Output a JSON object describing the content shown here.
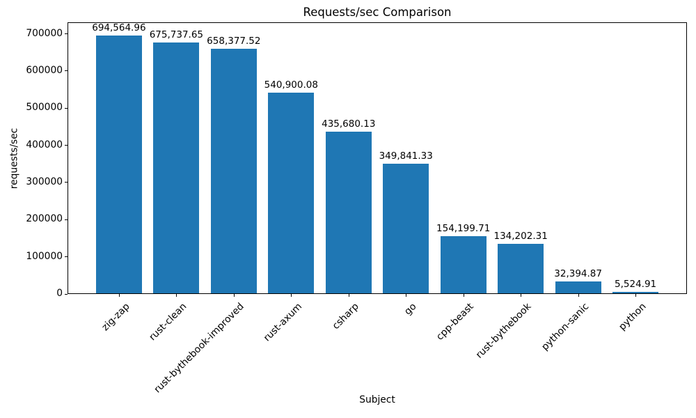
{
  "chart_data": {
    "type": "bar",
    "title": "Requests/sec Comparison",
    "xlabel": "Subject",
    "ylabel": "requests/sec",
    "categories": [
      "zig-zap",
      "rust-clean",
      "rust-bythebook-improved",
      "rust-axum",
      "csharp",
      "go",
      "cpp-beast",
      "rust-bythebook",
      "python-sanic",
      "python"
    ],
    "values": [
      694564.96,
      675737.65,
      658377.52,
      540900.08,
      435680.13,
      349841.33,
      154199.71,
      134202.31,
      32394.87,
      5524.91
    ],
    "value_labels": [
      "694,564.96",
      "675,737.65",
      "658,377.52",
      "540,900.08",
      "435,680.13",
      "349,841.33",
      "154,199.71",
      "134,202.31",
      "32,394.87",
      "5,524.91"
    ],
    "yticks": [
      0,
      100000,
      200000,
      300000,
      400000,
      500000,
      600000,
      700000
    ],
    "ytick_labels": [
      "0",
      "100000",
      "200000",
      "300000",
      "400000",
      "500000",
      "600000",
      "700000"
    ],
    "ylim": [
      0,
      729293
    ],
    "bar_color": "#1f77b4",
    "spine_color": "#000000",
    "text_color": "#000000",
    "grid": false,
    "legend": "none"
  }
}
